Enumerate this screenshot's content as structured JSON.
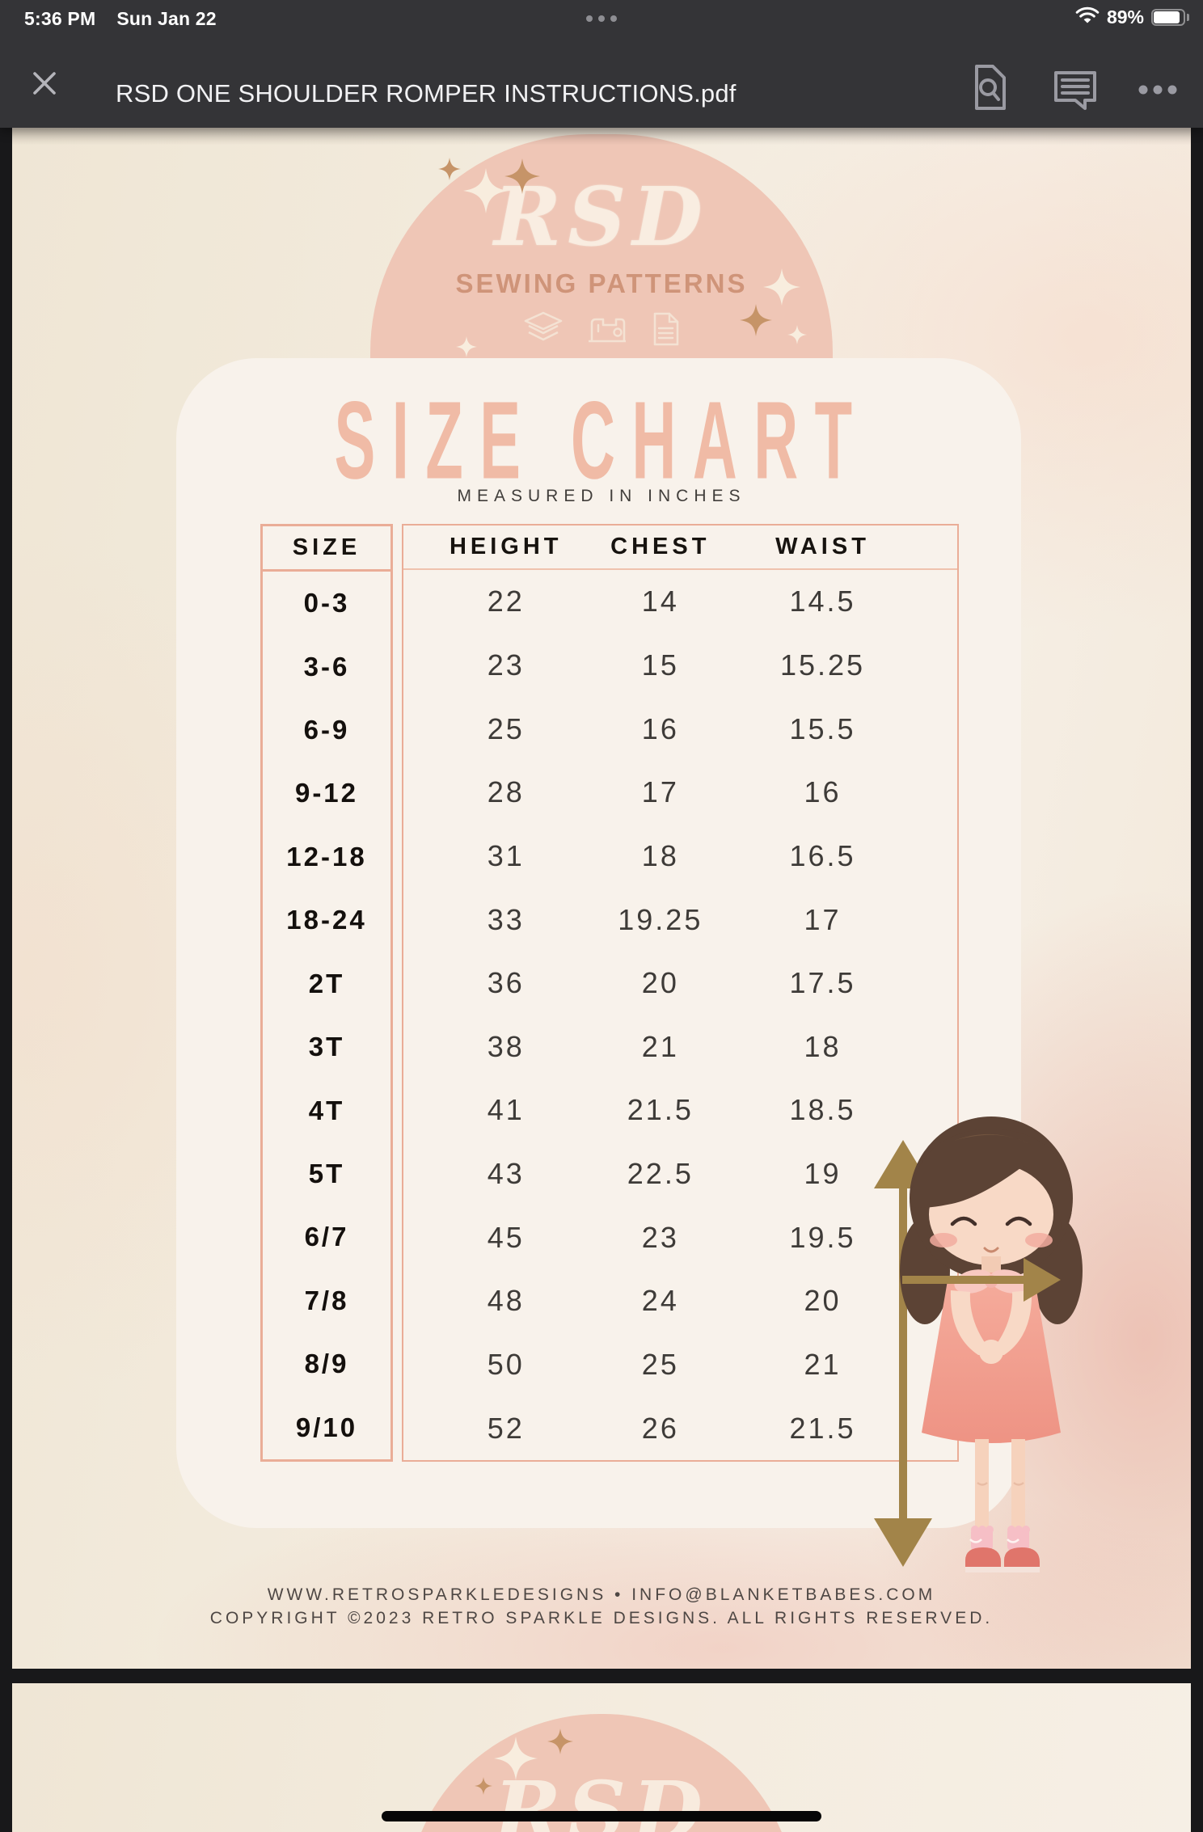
{
  "status_bar": {
    "time": "5:36 PM",
    "date": "Sun Jan 22",
    "battery_percent": "89%",
    "icons": [
      "multitask-dots-icon",
      "wifi-icon",
      "battery-icon"
    ]
  },
  "toolbar": {
    "title": "RSD ONE SHOULDER ROMPER INSTRUCTIONS.pdf",
    "icons": [
      "close-icon",
      "search-document-icon",
      "comment-icon",
      "more-icon"
    ]
  },
  "document": {
    "brand": {
      "name": "RSD",
      "tagline": "SEWING PATTERNS",
      "icons": [
        "fabric-stack-icon",
        "sewing-machine-icon",
        "pattern-paper-icon"
      ]
    },
    "heading": "SIZE CHART",
    "subheading": "MEASURED IN INCHES",
    "table": {
      "columns": [
        "SIZE",
        "HEIGHT",
        "CHEST",
        "WAIST"
      ],
      "rows": [
        {
          "size": "0-3",
          "height": "22",
          "chest": "14",
          "waist": "14.5"
        },
        {
          "size": "3-6",
          "height": "23",
          "chest": "15",
          "waist": "15.25"
        },
        {
          "size": "6-9",
          "height": "25",
          "chest": "16",
          "waist": "15.5"
        },
        {
          "size": "9-12",
          "height": "28",
          "chest": "17",
          "waist": "16"
        },
        {
          "size": "12-18",
          "height": "31",
          "chest": "18",
          "waist": "16.5"
        },
        {
          "size": "18-24",
          "height": "33",
          "chest": "19.25",
          "waist": "17"
        },
        {
          "size": "2T",
          "height": "36",
          "chest": "20",
          "waist": "17.5"
        },
        {
          "size": "3T",
          "height": "38",
          "chest": "21",
          "waist": "18"
        },
        {
          "size": "4T",
          "height": "41",
          "chest": "21.5",
          "waist": "18.5"
        },
        {
          "size": "5T",
          "height": "43",
          "chest": "22.5",
          "waist": "19"
        },
        {
          "size": "6/7",
          "height": "45",
          "chest": "23",
          "waist": "19.5"
        },
        {
          "size": "7/8",
          "height": "48",
          "chest": "24",
          "waist": "20"
        },
        {
          "size": "8/9",
          "height": "50",
          "chest": "25",
          "waist": "21"
        },
        {
          "size": "9/10",
          "height": "52",
          "chest": "26",
          "waist": "21.5"
        }
      ]
    },
    "footer": {
      "line1": "WWW.RETROSPARKLEDESIGNS • INFO@BLANKETBABES.COM",
      "line2": "COPYRIGHT ©2023 RETRO SPARKLE DESIGNS. ALL RIGHTS RESERVED."
    },
    "illustration": "girl-with-height-and-chest-measure-arrows"
  },
  "next_page": {
    "brand_name": "RSD"
  },
  "colors": {
    "header_bar": "#343437",
    "badge_pink": "#EFC6B6",
    "card_cream": "#F8F2EB",
    "table_border": "#EAAD97",
    "title_pink": "#F0BBA6",
    "arrow_gold": "#A28449",
    "page_cream": "#F2E8DA"
  }
}
